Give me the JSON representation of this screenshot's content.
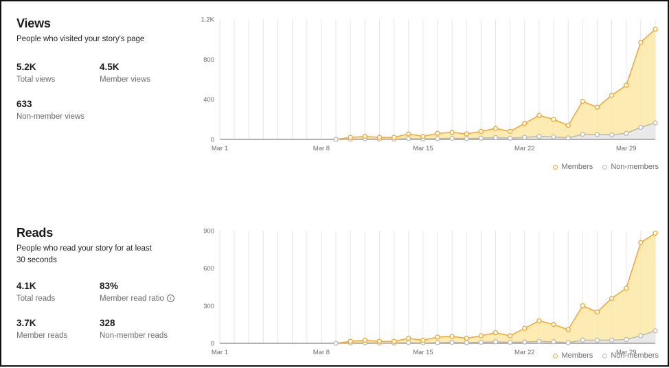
{
  "views": {
    "title": "Views",
    "subtitle": "People who visited your story's page",
    "stats": [
      {
        "value": "5.2K",
        "label": "Total views"
      },
      {
        "value": "4.5K",
        "label": "Member views"
      },
      {
        "value": "633",
        "label": "Non-member views"
      }
    ]
  },
  "reads": {
    "title": "Reads",
    "subtitle": "People who read your story for at least 30 seconds",
    "stats": [
      {
        "value": "4.1K",
        "label": "Total reads"
      },
      {
        "value": "83%",
        "label": "Member read ratio"
      },
      {
        "value": "3.7K",
        "label": "Member reads"
      },
      {
        "value": "328",
        "label": "Non-member reads"
      }
    ]
  },
  "legend": {
    "members": "Members",
    "non_members": "Non-members"
  },
  "colors": {
    "members": "#f5a623",
    "members_fill": "#fbe8a6",
    "non_members": "#b8b8b8",
    "non_members_fill": "#e9e9e9",
    "grid": "#e6e6e6"
  },
  "chart_data": [
    {
      "type": "area",
      "title": "Views",
      "x": [
        "Mar 1",
        "Mar 2",
        "Mar 3",
        "Mar 4",
        "Mar 5",
        "Mar 6",
        "Mar 7",
        "Mar 8",
        "Mar 9",
        "Mar 10",
        "Mar 11",
        "Mar 12",
        "Mar 13",
        "Mar 14",
        "Mar 15",
        "Mar 16",
        "Mar 17",
        "Mar 18",
        "Mar 19",
        "Mar 20",
        "Mar 21",
        "Mar 22",
        "Mar 23",
        "Mar 24",
        "Mar 25",
        "Mar 26",
        "Mar 27",
        "Mar 28",
        "Mar 29",
        "Mar 30",
        "Mar 31"
      ],
      "x_tick_labels": [
        "Mar 1",
        "Mar 8",
        "Mar 15",
        "Mar 22",
        "Mar 29"
      ],
      "y_ticks": [
        "0",
        "400",
        "800",
        "1.2K"
      ],
      "ylim": [
        0,
        1200
      ],
      "series": [
        {
          "name": "Members",
          "values": [
            0,
            0,
            0,
            0,
            0,
            0,
            0,
            0,
            0,
            20,
            30,
            20,
            20,
            55,
            30,
            60,
            70,
            55,
            80,
            110,
            80,
            160,
            240,
            200,
            140,
            380,
            320,
            440,
            540,
            970,
            1100
          ]
        },
        {
          "name": "Non-members",
          "values": [
            0,
            0,
            0,
            0,
            0,
            0,
            0,
            0,
            0,
            3,
            5,
            3,
            3,
            8,
            5,
            8,
            10,
            8,
            12,
            18,
            12,
            20,
            30,
            25,
            15,
            50,
            48,
            45,
            60,
            120,
            165
          ]
        }
      ],
      "legend": "bottom-right",
      "grid": true
    },
    {
      "type": "area",
      "title": "Reads",
      "x": [
        "Mar 1",
        "Mar 2",
        "Mar 3",
        "Mar 4",
        "Mar 5",
        "Mar 6",
        "Mar 7",
        "Mar 8",
        "Mar 9",
        "Mar 10",
        "Mar 11",
        "Mar 12",
        "Mar 13",
        "Mar 14",
        "Mar 15",
        "Mar 16",
        "Mar 17",
        "Mar 18",
        "Mar 19",
        "Mar 20",
        "Mar 21",
        "Mar 22",
        "Mar 23",
        "Mar 24",
        "Mar 25",
        "Mar 26",
        "Mar 27",
        "Mar 28",
        "Mar 29",
        "Mar 30",
        "Mar 31"
      ],
      "x_tick_labels": [
        "Mar 1",
        "Mar 8",
        "Mar 15",
        "Mar 22",
        "Mar 29"
      ],
      "y_ticks": [
        "0",
        "300",
        "600",
        "900"
      ],
      "ylim": [
        0,
        900
      ],
      "series": [
        {
          "name": "Members",
          "values": [
            0,
            0,
            0,
            0,
            0,
            0,
            0,
            0,
            0,
            15,
            25,
            15,
            15,
            40,
            25,
            50,
            55,
            40,
            60,
            85,
            60,
            120,
            180,
            150,
            110,
            300,
            250,
            360,
            440,
            805,
            880
          ]
        },
        {
          "name": "Non-members",
          "values": [
            0,
            0,
            0,
            0,
            0,
            0,
            0,
            0,
            0,
            2,
            4,
            2,
            2,
            5,
            3,
            5,
            7,
            5,
            8,
            12,
            8,
            10,
            15,
            12,
            5,
            25,
            25,
            25,
            30,
            60,
            100
          ]
        }
      ],
      "legend": "bottom-right",
      "grid": true
    }
  ]
}
